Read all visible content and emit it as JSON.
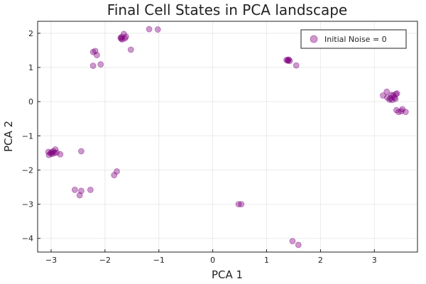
{
  "chart_data": {
    "type": "scatter",
    "title": "Final Cell States in PCA landscape",
    "xlabel": "PCA 1",
    "ylabel": "PCA 2",
    "xlim": [
      -3.25,
      3.8
    ],
    "ylim": [
      -4.4,
      2.35
    ],
    "xticks": [
      -3,
      -2,
      -1,
      0,
      1,
      2,
      3
    ],
    "xtick_labels": [
      "−3",
      "−2",
      "−1",
      "0",
      "1",
      "2",
      "3"
    ],
    "yticks": [
      -4,
      -3,
      -2,
      -1,
      0,
      1,
      2
    ],
    "ytick_labels": [
      "−4",
      "−3",
      "−2",
      "−1",
      "0",
      "1",
      "2"
    ],
    "grid": true,
    "legend_position": "top-right",
    "series": [
      {
        "name": "Initial Noise = 0",
        "color": "#800080",
        "points": [
          [
            -1.18,
            2.12
          ],
          [
            -1.02,
            2.11
          ],
          [
            -1.71,
            1.87
          ],
          [
            -1.7,
            1.84
          ],
          [
            -1.69,
            1.89
          ],
          [
            -1.68,
            1.82
          ],
          [
            -1.65,
            1.98
          ],
          [
            -1.63,
            1.85
          ],
          [
            -1.61,
            1.9
          ],
          [
            -1.52,
            1.52
          ],
          [
            -2.22,
            1.45
          ],
          [
            -2.18,
            1.48
          ],
          [
            -2.15,
            1.36
          ],
          [
            -2.08,
            1.09
          ],
          [
            -2.22,
            1.05
          ],
          [
            1.37,
            1.22
          ],
          [
            1.39,
            1.2
          ],
          [
            1.41,
            1.23
          ],
          [
            1.43,
            1.19
          ],
          [
            1.4,
            1.21
          ],
          [
            1.55,
            1.06
          ],
          [
            3.16,
            0.18
          ],
          [
            3.23,
            0.29
          ],
          [
            3.24,
            0.12
          ],
          [
            3.28,
            0.06
          ],
          [
            3.3,
            0.1
          ],
          [
            3.32,
            0.2
          ],
          [
            3.33,
            0.05
          ],
          [
            3.35,
            0.18
          ],
          [
            3.37,
            0.12
          ],
          [
            3.4,
            0.22
          ],
          [
            3.42,
            0.24
          ],
          [
            3.39,
            0.08
          ],
          [
            3.41,
            -0.25
          ],
          [
            3.45,
            -0.3
          ],
          [
            3.5,
            -0.28
          ],
          [
            3.52,
            -0.22
          ],
          [
            3.58,
            -0.3
          ],
          [
            -3.05,
            -1.47
          ],
          [
            -3.04,
            -1.56
          ],
          [
            -3.01,
            -1.51
          ],
          [
            -2.99,
            -1.48
          ],
          [
            -2.98,
            -1.53
          ],
          [
            -2.96,
            -1.45
          ],
          [
            -2.94,
            -1.5
          ],
          [
            -2.92,
            -1.4
          ],
          [
            -2.9,
            -1.49
          ],
          [
            -2.83,
            -1.54
          ],
          [
            -2.44,
            -1.45
          ],
          [
            -1.78,
            -2.04
          ],
          [
            -1.83,
            -2.15
          ],
          [
            -2.56,
            -2.58
          ],
          [
            -2.47,
            -2.74
          ],
          [
            -2.44,
            -2.61
          ],
          [
            -2.27,
            -2.58
          ],
          [
            0.48,
            -3.0
          ],
          [
            0.53,
            -3.0
          ],
          [
            1.48,
            -4.08
          ],
          [
            1.59,
            -4.19
          ]
        ]
      }
    ]
  }
}
